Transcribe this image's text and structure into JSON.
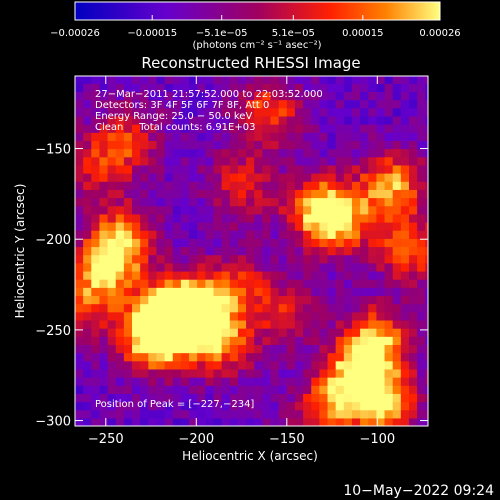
{
  "chart_data": {
    "type": "heatmap",
    "title": "Reconstructed RHESSI Image",
    "xlabel": "Heliocentric X (arcsec)",
    "ylabel": "Heliocentric Y (arcsec)",
    "xlim": [
      -267,
      -72
    ],
    "ylim": [
      -303,
      -110
    ],
    "x_ticks": [
      -250,
      -200,
      -150,
      -100
    ],
    "x_tick_labels": [
      "−250",
      "−200",
      "−150",
      "−100"
    ],
    "y_ticks": [
      -300,
      -250,
      -200,
      -150
    ],
    "y_tick_labels": [
      "−300",
      "−250",
      "−200",
      "−150"
    ],
    "colorbar": {
      "range": [
        -0.00026,
        0.00026
      ],
      "tick_values": [
        -0.00026,
        -0.00015,
        -5.1e-05,
        5.1e-05,
        0.00015,
        0.00026
      ],
      "tick_labels": [
        "−0.00026",
        "−0.00015",
        "−5.1e−05",
        "5.1e−05",
        "0.00015",
        "0.00026"
      ],
      "units": "(photons cm⁻² s⁻¹ asec⁻²)",
      "colormap": [
        "#0000c0",
        "#6600cc",
        "#a00060",
        "#ff2000",
        "#ff8000",
        "#ffff80"
      ]
    },
    "info_lines": [
      "27−Mar−2011 21:57:52.000 to 22:03:52.000",
      "Detectors: 3F 4F 5F 6F 7F 8F, Att 0",
      "Energy Range: 25.0 − 50.0 keV",
      "Clean     Total counts: 6.91E+03"
    ],
    "peak_label": "Position of Peak = [−227,−234]",
    "peak": [
      -227,
      -234
    ],
    "grid": false,
    "hot_spots": [
      {
        "x": -215,
        "y": -243,
        "v": 1.0
      },
      {
        "x": -200,
        "y": -240,
        "v": 0.9
      },
      {
        "x": -225,
        "y": -255,
        "v": 0.75
      },
      {
        "x": -248,
        "y": -213,
        "v": 0.65
      },
      {
        "x": -240,
        "y": -198,
        "v": 0.55
      },
      {
        "x": -260,
        "y": -235,
        "v": 0.5
      },
      {
        "x": -185,
        "y": -258,
        "v": 0.55
      },
      {
        "x": -178,
        "y": -225,
        "v": 0.45
      },
      {
        "x": -160,
        "y": -130,
        "v": 0.55
      },
      {
        "x": -132,
        "y": -183,
        "v": 0.7
      },
      {
        "x": -120,
        "y": -190,
        "v": 0.55
      },
      {
        "x": -92,
        "y": -170,
        "v": 0.7
      },
      {
        "x": -82,
        "y": -205,
        "v": 0.6
      },
      {
        "x": -100,
        "y": -255,
        "v": 0.7
      },
      {
        "x": -112,
        "y": -275,
        "v": 0.75
      },
      {
        "x": -95,
        "y": -290,
        "v": 0.7
      },
      {
        "x": -128,
        "y": -295,
        "v": 0.55
      },
      {
        "x": -175,
        "y": -170,
        "v": 0.45
      },
      {
        "x": -238,
        "y": -145,
        "v": 0.45
      },
      {
        "x": -255,
        "y": -160,
        "v": 0.4
      },
      {
        "x": -150,
        "y": -240,
        "v": 0.4
      }
    ]
  },
  "footer": {
    "timestamp": "10−May−2022 09:24"
  }
}
